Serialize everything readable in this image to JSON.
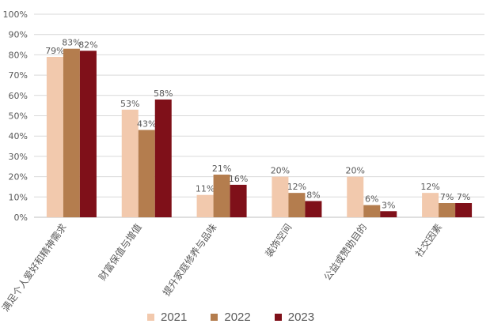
{
  "chart_data": {
    "type": "bar",
    "categories": [
      "满足个人爱好和精神需求",
      "财富保值与增值",
      "提升家庭修养与品味",
      "装饰空间",
      "公益或赞助目的",
      "社交因素"
    ],
    "series": [
      {
        "name": "2021",
        "values": [
          79,
          53,
          11,
          20,
          20,
          12
        ],
        "color": "#F2C9AD"
      },
      {
        "name": "2022",
        "values": [
          83,
          43,
          21,
          12,
          6,
          7
        ],
        "color": "#B47D4E"
      },
      {
        "name": "2023",
        "values": [
          82,
          58,
          16,
          8,
          3,
          7
        ],
        "color": "#7F1019"
      }
    ],
    "value_suffix": "%",
    "ylim": [
      0,
      100
    ],
    "yticks": [
      0,
      10,
      20,
      30,
      40,
      50,
      60,
      70,
      80,
      90,
      100
    ],
    "ytick_labels": [
      "0%",
      "10%",
      "20%",
      "30%",
      "40%",
      "50%",
      "60%",
      "70%",
      "80%",
      "90%",
      "100%"
    ],
    "grid": true,
    "legend_position": "bottom",
    "title": "",
    "xlabel": "",
    "ylabel": ""
  },
  "legend": {
    "items": [
      {
        "label": "2021",
        "color": "#F2C9AD"
      },
      {
        "label": "2022",
        "color": "#B47D4E"
      },
      {
        "label": "2023",
        "color": "#7F1019"
      }
    ]
  }
}
